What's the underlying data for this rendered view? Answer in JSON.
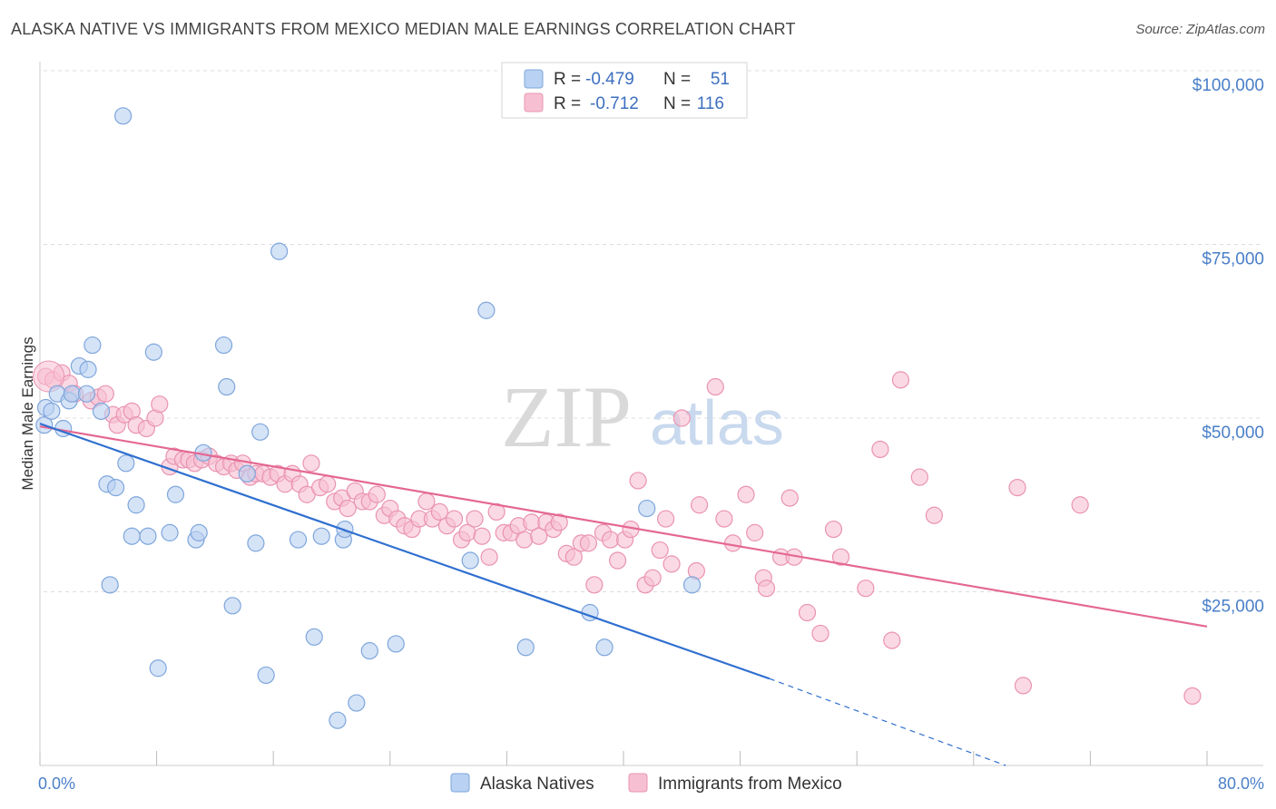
{
  "header": {
    "title": "ALASKA NATIVE VS IMMIGRANTS FROM MEXICO MEDIAN MALE EARNINGS CORRELATION CHART",
    "source": "Source: ZipAtlas.com"
  },
  "watermark": {
    "zip": "ZIP",
    "atlas": "atlas"
  },
  "colors": {
    "blue_fill": "#b9d1f2",
    "blue_stroke": "#7ea6dc",
    "blue_line": "#2f6fcf",
    "pink_fill": "#f7c0d2",
    "pink_stroke": "#ea93b0",
    "pink_line": "#e46892",
    "grid": "#dddddd",
    "axis_text": "#4a7fc8"
  },
  "legend_top": {
    "row1": {
      "r_label": "R =",
      "r_value": "-0.479",
      "n_label": "N =",
      "n_value": "51"
    },
    "row2": {
      "r_label": "R =",
      "r_value": "-0.712",
      "n_label": "N =",
      "n_value": "116"
    }
  },
  "legend_bottom": {
    "series1": "Alaska Natives",
    "series2": "Immigrants from Mexico"
  },
  "chart_data": {
    "type": "scatter",
    "title": "ALASKA NATIVE VS IMMIGRANTS FROM MEXICO MEDIAN MALE EARNINGS CORRELATION CHART",
    "xlabel": "",
    "ylabel": "Median Male Earnings",
    "xlim": [
      0,
      80
    ],
    "ylim": [
      0,
      100000
    ],
    "x_tick_labels": [
      "0.0%",
      "80.0%"
    ],
    "y_ticks": [
      25000,
      50000,
      75000,
      100000
    ],
    "y_tick_labels": [
      "$25,000",
      "$50,000",
      "$75,000",
      "$100,000"
    ],
    "grid": true,
    "legend": "top-center",
    "series": [
      {
        "name": "Alaska Natives",
        "color": "#b9d1f2",
        "r": -0.479,
        "n": 51,
        "trend": {
          "x": [
            0,
            50
          ],
          "y": [
            49200,
            12500
          ],
          "dashed_to": {
            "x": 66.2,
            "y": 0
          }
        },
        "points": [
          [
            0.3,
            49000
          ],
          [
            0.4,
            51500
          ],
          [
            0.8,
            51000
          ],
          [
            1.2,
            53500
          ],
          [
            1.6,
            48500
          ],
          [
            2.0,
            52500
          ],
          [
            2.2,
            53500
          ],
          [
            2.7,
            57500
          ],
          [
            3.2,
            53500
          ],
          [
            3.3,
            57000
          ],
          [
            3.6,
            60500
          ],
          [
            4.2,
            51000
          ],
          [
            4.6,
            40500
          ],
          [
            4.8,
            26000
          ],
          [
            5.2,
            40000
          ],
          [
            5.7,
            93500
          ],
          [
            5.9,
            43500
          ],
          [
            6.3,
            33000
          ],
          [
            6.6,
            37500
          ],
          [
            7.4,
            33000
          ],
          [
            7.8,
            59500
          ],
          [
            8.1,
            14000
          ],
          [
            8.9,
            33500
          ],
          [
            9.3,
            39000
          ],
          [
            10.7,
            32500
          ],
          [
            10.9,
            33500
          ],
          [
            11.2,
            45000
          ],
          [
            12.6,
            60500
          ],
          [
            12.8,
            54500
          ],
          [
            13.2,
            23000
          ],
          [
            14.2,
            42000
          ],
          [
            14.8,
            32000
          ],
          [
            15.1,
            48000
          ],
          [
            15.5,
            13000
          ],
          [
            16.4,
            74000
          ],
          [
            17.7,
            32500
          ],
          [
            18.8,
            18500
          ],
          [
            19.3,
            33000
          ],
          [
            20.4,
            6500
          ],
          [
            20.8,
            32500
          ],
          [
            20.9,
            34000
          ],
          [
            21.7,
            9000
          ],
          [
            22.6,
            16500
          ],
          [
            24.4,
            17500
          ],
          [
            29.5,
            29500
          ],
          [
            30.6,
            65500
          ],
          [
            33.3,
            17000
          ],
          [
            37.7,
            22000
          ],
          [
            38.7,
            17000
          ],
          [
            41.6,
            37000
          ],
          [
            44.7,
            26000
          ]
        ]
      },
      {
        "name": "Immigrants from Mexico",
        "color": "#f7c0d2",
        "r": -0.712,
        "n": 116,
        "trend": {
          "x": [
            0,
            80
          ],
          "y": [
            48800,
            20000
          ]
        },
        "points": [
          [
            0.4,
            56000
          ],
          [
            0.9,
            55500
          ],
          [
            1.5,
            56500
          ],
          [
            2.0,
            55000
          ],
          [
            2.4,
            53500
          ],
          [
            3.5,
            52500
          ],
          [
            4.0,
            53000
          ],
          [
            4.5,
            53500
          ],
          [
            5.0,
            50500
          ],
          [
            5.3,
            49000
          ],
          [
            5.8,
            50500
          ],
          [
            6.3,
            51000
          ],
          [
            6.6,
            49000
          ],
          [
            7.3,
            48500
          ],
          [
            7.9,
            50000
          ],
          [
            8.2,
            52000
          ],
          [
            8.9,
            43000
          ],
          [
            9.2,
            44500
          ],
          [
            9.8,
            44000
          ],
          [
            10.2,
            44000
          ],
          [
            10.6,
            43500
          ],
          [
            11.1,
            44000
          ],
          [
            11.6,
            44500
          ],
          [
            12.1,
            43500
          ],
          [
            12.6,
            43000
          ],
          [
            13.1,
            43500
          ],
          [
            13.5,
            42500
          ],
          [
            13.9,
            43500
          ],
          [
            14.4,
            41500
          ],
          [
            14.8,
            42000
          ],
          [
            15.3,
            42000
          ],
          [
            15.8,
            41500
          ],
          [
            16.3,
            42000
          ],
          [
            16.8,
            40500
          ],
          [
            17.3,
            42000
          ],
          [
            17.8,
            40500
          ],
          [
            18.3,
            39000
          ],
          [
            18.6,
            43500
          ],
          [
            19.2,
            40000
          ],
          [
            19.7,
            40500
          ],
          [
            20.2,
            38000
          ],
          [
            20.7,
            38500
          ],
          [
            21.1,
            37000
          ],
          [
            21.6,
            39500
          ],
          [
            22.1,
            38000
          ],
          [
            22.6,
            38000
          ],
          [
            23.1,
            39000
          ],
          [
            23.6,
            36000
          ],
          [
            24.0,
            37000
          ],
          [
            24.5,
            35500
          ],
          [
            25.0,
            34500
          ],
          [
            25.5,
            34000
          ],
          [
            26.0,
            35500
          ],
          [
            26.5,
            38000
          ],
          [
            26.9,
            35500
          ],
          [
            27.4,
            36500
          ],
          [
            27.9,
            34500
          ],
          [
            28.4,
            35500
          ],
          [
            28.9,
            32500
          ],
          [
            29.3,
            33500
          ],
          [
            29.8,
            35500
          ],
          [
            30.3,
            33000
          ],
          [
            30.8,
            30000
          ],
          [
            31.3,
            36500
          ],
          [
            31.8,
            33500
          ],
          [
            32.3,
            33500
          ],
          [
            32.8,
            34500
          ],
          [
            33.2,
            32500
          ],
          [
            33.7,
            35000
          ],
          [
            34.2,
            33000
          ],
          [
            34.7,
            35000
          ],
          [
            35.2,
            34000
          ],
          [
            35.6,
            35000
          ],
          [
            36.1,
            30500
          ],
          [
            36.6,
            30000
          ],
          [
            37.1,
            32000
          ],
          [
            37.6,
            32000
          ],
          [
            38.0,
            26000
          ],
          [
            38.6,
            33500
          ],
          [
            39.1,
            32500
          ],
          [
            39.6,
            29500
          ],
          [
            40.1,
            32500
          ],
          [
            40.5,
            34000
          ],
          [
            41.0,
            41000
          ],
          [
            41.5,
            26000
          ],
          [
            42.0,
            27000
          ],
          [
            42.5,
            31000
          ],
          [
            42.9,
            35500
          ],
          [
            43.3,
            29000
          ],
          [
            44.0,
            50000
          ],
          [
            45.0,
            28000
          ],
          [
            45.2,
            37500
          ],
          [
            46.3,
            54500
          ],
          [
            46.9,
            35500
          ],
          [
            47.5,
            32000
          ],
          [
            48.4,
            39000
          ],
          [
            49.0,
            33500
          ],
          [
            49.6,
            27000
          ],
          [
            49.8,
            25500
          ],
          [
            50.8,
            30000
          ],
          [
            51.4,
            38500
          ],
          [
            51.7,
            30000
          ],
          [
            52.6,
            22000
          ],
          [
            53.5,
            19000
          ],
          [
            54.4,
            34000
          ],
          [
            54.9,
            30000
          ],
          [
            56.6,
            25500
          ],
          [
            57.6,
            45500
          ],
          [
            58.4,
            18000
          ],
          [
            59.0,
            55500
          ],
          [
            60.3,
            41500
          ],
          [
            61.3,
            36000
          ],
          [
            67.0,
            40000
          ],
          [
            67.4,
            11500
          ],
          [
            71.3,
            37500
          ],
          [
            79.0,
            10000
          ]
        ]
      }
    ]
  }
}
